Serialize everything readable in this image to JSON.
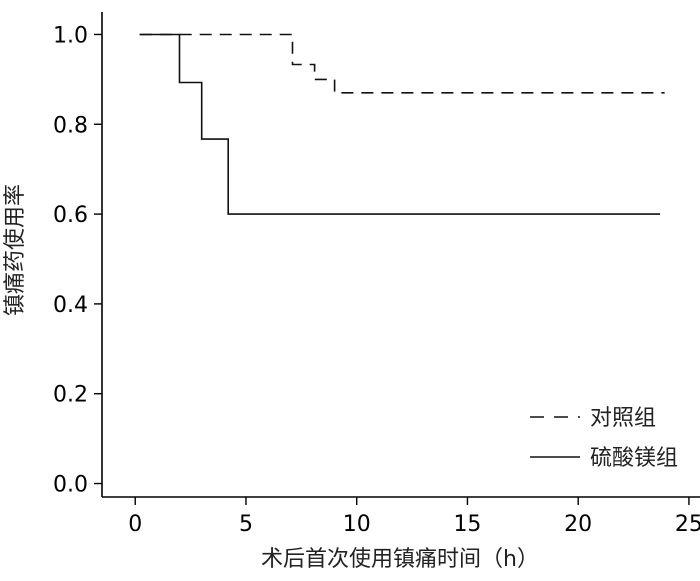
{
  "chart_data": {
    "type": "line",
    "subtype": "step",
    "xlabel": "术后首次使用镇痛时间（h）",
    "ylabel": "镇痛药使用率",
    "xlim": [
      -1.5,
      25.5
    ],
    "ylim": [
      -0.03,
      1.05
    ],
    "x_ticks": [
      "0",
      "5",
      "10",
      "15",
      "20",
      "25"
    ],
    "y_ticks": [
      "0.0",
      "0.2",
      "0.4",
      "0.6",
      "0.8",
      "1.0"
    ],
    "grid": false,
    "legend_position": "bottom-right",
    "series": [
      {
        "name": "对照组",
        "line_style": "dashed",
        "color": "#111111",
        "points": [
          [
            0.2,
            1.0
          ],
          [
            7.1,
            1.0
          ],
          [
            7.1,
            0.933
          ],
          [
            8.1,
            0.933
          ],
          [
            8.1,
            0.9
          ],
          [
            9.0,
            0.9
          ],
          [
            9.0,
            0.87
          ],
          [
            23.9,
            0.87
          ]
        ]
      },
      {
        "name": "硫酸镁组",
        "line_style": "solid",
        "color": "#111111",
        "points": [
          [
            0.2,
            1.0
          ],
          [
            2.0,
            1.0
          ],
          [
            2.0,
            0.893
          ],
          [
            3.0,
            0.893
          ],
          [
            3.0,
            0.767
          ],
          [
            4.2,
            0.767
          ],
          [
            4.2,
            0.6
          ],
          [
            23.7,
            0.6
          ]
        ]
      }
    ]
  }
}
